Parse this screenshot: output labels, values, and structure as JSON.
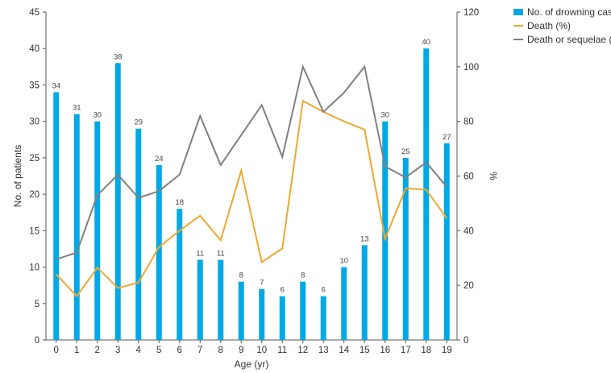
{
  "chart_data": {
    "type": "bar",
    "x": [
      "0",
      "1",
      "2",
      "3",
      "4",
      "5",
      "6",
      "7",
      "8",
      "9",
      "10",
      "11",
      "12",
      "13",
      "14",
      "15",
      "16",
      "17",
      "18",
      "19"
    ],
    "xlabel": "Age (yr)",
    "ylabel": "No. of patients",
    "y2label": "%",
    "ylim": [
      0,
      45
    ],
    "y2lim": [
      0,
      120
    ],
    "yticks": [
      "0",
      "5",
      "10",
      "15",
      "20",
      "25",
      "30",
      "35",
      "40",
      "45"
    ],
    "y2ticks": [
      "0",
      "20",
      "40",
      "60",
      "80",
      "100",
      "120"
    ],
    "series": [
      {
        "name": "No. of drowning cases",
        "type": "bar",
        "axis": "left",
        "color": "#00a9e6",
        "values": [
          34,
          31,
          30,
          38,
          29,
          24,
          18,
          11,
          11,
          8,
          7,
          6,
          8,
          6,
          10,
          13,
          30,
          25,
          40,
          27
        ],
        "labels": [
          "34",
          "31",
          "30",
          "38",
          "29",
          "24",
          "18",
          "11",
          "11",
          "8",
          "7",
          "6",
          "8",
          "6",
          "10",
          "13",
          "30",
          "25",
          "40",
          "27"
        ]
      },
      {
        "name": "Death (%)",
        "type": "line",
        "axis": "right",
        "color": "#f0a830",
        "values": [
          24,
          16,
          26.5,
          19,
          21,
          34,
          40,
          45.5,
          36.5,
          62,
          28.5,
          33.5,
          87.5,
          83.5,
          80,
          77,
          37,
          55.5,
          55,
          44.5
        ]
      },
      {
        "name": "Death or sequelae (%)",
        "type": "line",
        "axis": "right",
        "color": "#808080",
        "values": [
          29.5,
          32,
          53,
          60.5,
          52,
          54.5,
          60.5,
          82,
          64,
          75,
          86,
          67,
          100,
          83.5,
          90.5,
          100,
          63.5,
          59.5,
          65,
          56
        ]
      }
    ],
    "legend_position": "top-right",
    "grid": false
  }
}
